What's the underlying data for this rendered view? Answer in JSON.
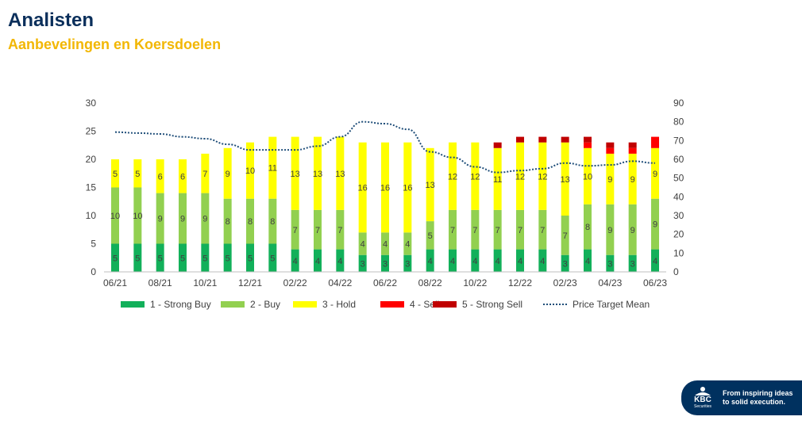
{
  "header": {
    "title": "Analisten",
    "subtitle": "Aanbevelingen en Koersdoelen"
  },
  "branding": {
    "logo_text": "KBC",
    "logo_subtext": "Securities",
    "tagline_line1": "From inspiring ideas",
    "tagline_line2": "to solid execution.",
    "color": "#00315f"
  },
  "chart_data": {
    "type": "bar",
    "stacked": true,
    "secondary_line": true,
    "x_tick_labels": [
      "06/21",
      "08/21",
      "10/21",
      "12/21",
      "02/22",
      "04/22",
      "06/22",
      "08/22",
      "10/22",
      "12/22",
      "02/23",
      "04/23",
      "06/23"
    ],
    "categories": [
      "06/21",
      "07/21",
      "08/21",
      "09/21",
      "10/21",
      "11/21",
      "12/21",
      "01/22",
      "02/22",
      "03/22",
      "04/22",
      "05/22",
      "06/22",
      "07/22",
      "08/22",
      "09/22",
      "10/22",
      "11/22",
      "12/22",
      "01/23",
      "02/23",
      "03/23",
      "04/23",
      "05/23",
      "06/23"
    ],
    "series": [
      {
        "name": "1 - Strong Buy",
        "color": "#12b05a",
        "values": [
          5,
          5,
          5,
          5,
          5,
          5,
          5,
          5,
          4,
          4,
          4,
          3,
          3,
          3,
          4,
          4,
          4,
          4,
          4,
          4,
          3,
          4,
          3,
          3,
          4
        ]
      },
      {
        "name": "2 - Buy",
        "color": "#92d050",
        "values": [
          10,
          10,
          9,
          9,
          9,
          8,
          8,
          8,
          7,
          7,
          7,
          4,
          4,
          4,
          5,
          7,
          7,
          7,
          7,
          7,
          7,
          8,
          9,
          9,
          9
        ]
      },
      {
        "name": "3 - Hold",
        "color": "#ffff00",
        "values": [
          5,
          5,
          6,
          6,
          7,
          9,
          10,
          11,
          13,
          13,
          13,
          16,
          16,
          16,
          13,
          12,
          12,
          11,
          12,
          12,
          13,
          10,
          9,
          9,
          9
        ]
      },
      {
        "name": "4 - Sell",
        "color": "#ff0000",
        "values": [
          0,
          0,
          0,
          0,
          0,
          0,
          0,
          0,
          0,
          0,
          0,
          0,
          0,
          0,
          0,
          0,
          0,
          0,
          0,
          0,
          0,
          1,
          1,
          1,
          2
        ]
      },
      {
        "name": "5 - Strong Sell",
        "color": "#c00000",
        "values": [
          0,
          0,
          0,
          0,
          0,
          0,
          0,
          0,
          0,
          0,
          0,
          0,
          0,
          0,
          0,
          0,
          0,
          1,
          1,
          1,
          1,
          1,
          1,
          1,
          0
        ]
      }
    ],
    "labeled_series": [
      0,
      1,
      2
    ],
    "line": {
      "name": "Price Target  Mean",
      "color": "#1f4e79",
      "values": [
        74.5,
        74,
        73.5,
        72,
        71,
        68,
        65,
        65,
        65,
        67,
        72,
        80,
        79,
        76,
        64,
        61,
        56,
        53,
        54,
        55,
        58,
        56.5,
        57,
        59,
        58
      ]
    },
    "ylim": [
      0,
      30
    ],
    "yticks": [
      0,
      5,
      10,
      15,
      20,
      25,
      30
    ],
    "y2lim": [
      0,
      90
    ],
    "y2ticks": [
      0,
      10,
      20,
      30,
      40,
      50,
      60,
      70,
      80,
      90
    ],
    "legend": "bottom",
    "grid": false
  }
}
